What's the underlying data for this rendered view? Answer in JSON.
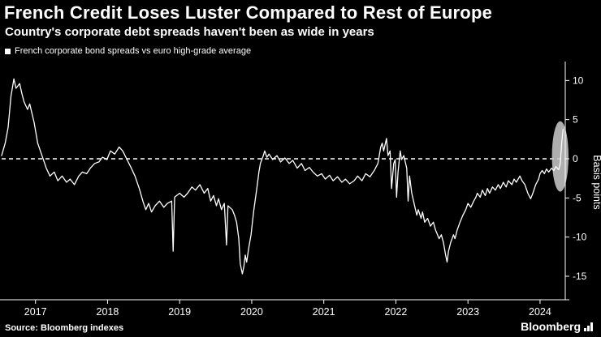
{
  "header": {
    "title": "French Credit Loses Luster Compared to Rest of Europe",
    "subtitle": "Country's corporate debt spreads haven't been as wide in years"
  },
  "legend": {
    "label": "French corporate bond spreads vs euro high-grade average"
  },
  "footer": {
    "source": "Source: Bloomberg indexes",
    "brand": "Bloomberg"
  },
  "colors": {
    "background": "#000000",
    "line": "#ffffff",
    "axis": "#ffffff",
    "text": "#ffffff",
    "highlight": "#c6c6c6"
  },
  "chart_data": {
    "type": "line",
    "title": "French Credit Loses Luster Compared to Rest of Europe",
    "subtitle": "Country's corporate debt spreads haven't been as wide in years",
    "legend": [
      "French corporate bond spreads vs euro high-grade average"
    ],
    "legend_position": "top-left",
    "grid": false,
    "xlabel": "",
    "ylabel": "Basis points",
    "ylim": [
      -18,
      12
    ],
    "yticks": [
      10,
      5,
      0,
      -5,
      -10,
      -15
    ],
    "x_range": [
      2016.53,
      2024.35
    ],
    "xticks": [
      2017,
      2018,
      2019,
      2020,
      2021,
      2022,
      2023,
      2024
    ],
    "zero_line": 0,
    "line_color": "#ffffff",
    "highlight_ellipse": {
      "cx": 2024.28,
      "cy": 0.3,
      "rx": 0.115,
      "ry": 4.5,
      "fill": "#c6c6c6",
      "opacity": 0.88
    },
    "series": [
      {
        "name": "French corporate bond spreads vs euro high-grade average",
        "points": [
          [
            2016.53,
            0.4
          ],
          [
            2016.58,
            2.0
          ],
          [
            2016.62,
            4.0
          ],
          [
            2016.66,
            8.0
          ],
          [
            2016.7,
            10.2
          ],
          [
            2016.73,
            9.0
          ],
          [
            2016.78,
            9.6
          ],
          [
            2016.81,
            8.4
          ],
          [
            2016.84,
            7.3
          ],
          [
            2016.89,
            6.3
          ],
          [
            2016.92,
            7.0
          ],
          [
            2016.98,
            4.7
          ],
          [
            2017.03,
            2.0
          ],
          [
            2017.09,
            0.4
          ],
          [
            2017.15,
            -1.2
          ],
          [
            2017.2,
            -2.2
          ],
          [
            2017.26,
            -1.7
          ],
          [
            2017.31,
            -2.8
          ],
          [
            2017.37,
            -2.2
          ],
          [
            2017.43,
            -3.0
          ],
          [
            2017.48,
            -2.6
          ],
          [
            2017.54,
            -3.3
          ],
          [
            2017.6,
            -2.2
          ],
          [
            2017.65,
            -1.7
          ],
          [
            2017.71,
            -1.9
          ],
          [
            2017.76,
            -1.2
          ],
          [
            2017.82,
            -0.6
          ],
          [
            2017.88,
            -0.4
          ],
          [
            2017.93,
            0.2
          ],
          [
            2017.99,
            -0.1
          ],
          [
            2018.04,
            1.0
          ],
          [
            2018.1,
            0.6
          ],
          [
            2018.16,
            1.5
          ],
          [
            2018.21,
            1.0
          ],
          [
            2018.27,
            -0.1
          ],
          [
            2018.33,
            -1.2
          ],
          [
            2018.38,
            -2.2
          ],
          [
            2018.44,
            -3.8
          ],
          [
            2018.49,
            -5.4
          ],
          [
            2018.53,
            -6.5
          ],
          [
            2018.57,
            -5.7
          ],
          [
            2018.61,
            -6.8
          ],
          [
            2018.66,
            -6.0
          ],
          [
            2018.72,
            -5.4
          ],
          [
            2018.78,
            -6.2
          ],
          [
            2018.83,
            -5.7
          ],
          [
            2018.89,
            -5.4
          ],
          [
            2018.91,
            -11.8
          ],
          [
            2018.93,
            -4.9
          ],
          [
            2019.0,
            -4.4
          ],
          [
            2019.06,
            -4.9
          ],
          [
            2019.11,
            -4.4
          ],
          [
            2019.17,
            -3.6
          ],
          [
            2019.22,
            -4.0
          ],
          [
            2019.28,
            -3.3
          ],
          [
            2019.34,
            -4.4
          ],
          [
            2019.39,
            -3.8
          ],
          [
            2019.43,
            -5.4
          ],
          [
            2019.47,
            -4.7
          ],
          [
            2019.51,
            -6.0
          ],
          [
            2019.54,
            -5.1
          ],
          [
            2019.58,
            -6.5
          ],
          [
            2019.62,
            -5.7
          ],
          [
            2019.65,
            -11.0
          ],
          [
            2019.67,
            -6.0
          ],
          [
            2019.73,
            -6.5
          ],
          [
            2019.76,
            -7.2
          ],
          [
            2019.79,
            -8.1
          ],
          [
            2019.82,
            -10.2
          ],
          [
            2019.84,
            -13.4
          ],
          [
            2019.87,
            -14.7
          ],
          [
            2019.89,
            -13.8
          ],
          [
            2019.91,
            -12.3
          ],
          [
            2019.93,
            -13.2
          ],
          [
            2019.96,
            -11.3
          ],
          [
            2019.99,
            -9.7
          ],
          [
            2020.01,
            -8.1
          ],
          [
            2020.03,
            -6.5
          ],
          [
            2020.07,
            -3.8
          ],
          [
            2020.1,
            -1.7
          ],
          [
            2020.12,
            -0.6
          ],
          [
            2020.16,
            0.4
          ],
          [
            2020.18,
            1.0
          ],
          [
            2020.21,
            0.2
          ],
          [
            2020.24,
            0.6
          ],
          [
            2020.29,
            -0.1
          ],
          [
            2020.35,
            0.4
          ],
          [
            2020.4,
            -0.4
          ],
          [
            2020.46,
            0.1
          ],
          [
            2020.52,
            -0.6
          ],
          [
            2020.57,
            -0.2
          ],
          [
            2020.63,
            -1.2
          ],
          [
            2020.69,
            -0.6
          ],
          [
            2020.74,
            -1.5
          ],
          [
            2020.8,
            -1.1
          ],
          [
            2020.85,
            -1.7
          ],
          [
            2020.91,
            -2.2
          ],
          [
            2020.97,
            -1.9
          ],
          [
            2021.02,
            -2.6
          ],
          [
            2021.08,
            -2.1
          ],
          [
            2021.13,
            -2.8
          ],
          [
            2021.19,
            -2.3
          ],
          [
            2021.25,
            -3.0
          ],
          [
            2021.3,
            -2.6
          ],
          [
            2021.36,
            -3.2
          ],
          [
            2021.42,
            -2.8
          ],
          [
            2021.47,
            -2.2
          ],
          [
            2021.53,
            -2.8
          ],
          [
            2021.58,
            -1.9
          ],
          [
            2021.64,
            -2.3
          ],
          [
            2021.7,
            -1.5
          ],
          [
            2021.75,
            -0.6
          ],
          [
            2021.79,
            1.5
          ],
          [
            2021.81,
            2.0
          ],
          [
            2021.83,
            1.0
          ],
          [
            2021.87,
            2.6
          ],
          [
            2021.89,
            0.4
          ],
          [
            2021.92,
            1.0
          ],
          [
            2021.94,
            -3.8
          ],
          [
            2021.97,
            -0.6
          ],
          [
            2021.99,
            -0.1
          ],
          [
            2022.01,
            -4.9
          ],
          [
            2022.03,
            -1.7
          ],
          [
            2022.06,
            1.0
          ],
          [
            2022.08,
            -0.1
          ],
          [
            2022.11,
            0.4
          ],
          [
            2022.15,
            -1.2
          ],
          [
            2022.17,
            -5.4
          ],
          [
            2022.19,
            -2.2
          ],
          [
            2022.22,
            -4.4
          ],
          [
            2022.26,
            -6.0
          ],
          [
            2022.29,
            -7.2
          ],
          [
            2022.31,
            -6.5
          ],
          [
            2022.35,
            -7.6
          ],
          [
            2022.37,
            -6.8
          ],
          [
            2022.4,
            -8.1
          ],
          [
            2022.44,
            -7.6
          ],
          [
            2022.48,
            -8.6
          ],
          [
            2022.52,
            -8.1
          ],
          [
            2022.55,
            -9.1
          ],
          [
            2022.6,
            -10.2
          ],
          [
            2022.63,
            -9.7
          ],
          [
            2022.66,
            -10.7
          ],
          [
            2022.69,
            -12.3
          ],
          [
            2022.71,
            -13.2
          ],
          [
            2022.73,
            -11.8
          ],
          [
            2022.76,
            -10.7
          ],
          [
            2022.8,
            -9.7
          ],
          [
            2022.82,
            -10.2
          ],
          [
            2022.85,
            -9.1
          ],
          [
            2022.89,
            -8.1
          ],
          [
            2022.93,
            -7.2
          ],
          [
            2022.97,
            -6.5
          ],
          [
            2023.0,
            -5.7
          ],
          [
            2023.04,
            -6.2
          ],
          [
            2023.08,
            -5.4
          ],
          [
            2023.11,
            -4.9
          ],
          [
            2023.13,
            -4.4
          ],
          [
            2023.17,
            -4.9
          ],
          [
            2023.2,
            -4.0
          ],
          [
            2023.24,
            -4.7
          ],
          [
            2023.27,
            -3.8
          ],
          [
            2023.3,
            -4.4
          ],
          [
            2023.34,
            -3.6
          ],
          [
            2023.38,
            -4.0
          ],
          [
            2023.42,
            -3.3
          ],
          [
            2023.45,
            -3.8
          ],
          [
            2023.49,
            -3.0
          ],
          [
            2023.53,
            -3.6
          ],
          [
            2023.56,
            -2.8
          ],
          [
            2023.61,
            -3.3
          ],
          [
            2023.64,
            -2.6
          ],
          [
            2023.67,
            -3.0
          ],
          [
            2023.72,
            -2.2
          ],
          [
            2023.75,
            -2.8
          ],
          [
            2023.79,
            -3.3
          ],
          [
            2023.83,
            -4.4
          ],
          [
            2023.87,
            -5.1
          ],
          [
            2023.9,
            -4.4
          ],
          [
            2023.94,
            -3.3
          ],
          [
            2023.98,
            -2.6
          ],
          [
            2024.0,
            -1.9
          ],
          [
            2024.03,
            -1.5
          ],
          [
            2024.06,
            -1.9
          ],
          [
            2024.09,
            -1.3
          ],
          [
            2024.12,
            -1.7
          ],
          [
            2024.16,
            -1.2
          ],
          [
            2024.19,
            -1.5
          ],
          [
            2024.22,
            -1.0
          ],
          [
            2024.26,
            -1.4
          ],
          [
            2024.28,
            -0.6
          ],
          [
            2024.3,
            2.0
          ],
          [
            2024.32,
            3.8
          ]
        ]
      }
    ]
  }
}
